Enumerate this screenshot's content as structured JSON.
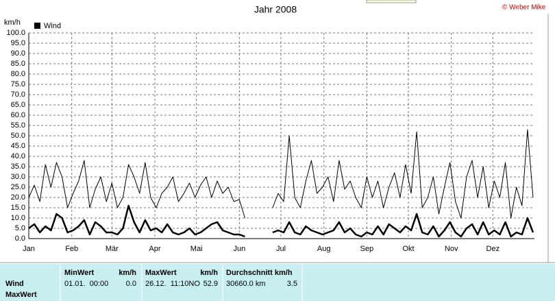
{
  "chart_data": {
    "type": "line",
    "title": "Jahr 2008",
    "y_label": "km/h",
    "legend": "top-left",
    "grid": true,
    "xlim": [
      1,
      366
    ],
    "xticks": [
      {
        "value": 1,
        "label": "Jan"
      },
      {
        "value": 32,
        "label": "Feb"
      },
      {
        "value": 61,
        "label": "Mär"
      },
      {
        "value": 92,
        "label": "Apr"
      },
      {
        "value": 122,
        "label": "Mai"
      },
      {
        "value": 153,
        "label": "Jun"
      },
      {
        "value": 183,
        "label": "Jul"
      },
      {
        "value": 214,
        "label": "Aug"
      },
      {
        "value": 245,
        "label": "Sep"
      },
      {
        "value": 275,
        "label": "Okt"
      },
      {
        "value": 306,
        "label": "Nov"
      },
      {
        "value": 336,
        "label": "Dez"
      }
    ],
    "ylim": [
      0,
      100
    ],
    "yticks": [
      {
        "value": 0,
        "label": "0.0"
      },
      {
        "value": 5,
        "label": "5.0"
      },
      {
        "value": 10,
        "label": "10.0"
      },
      {
        "value": 15,
        "label": "15.0"
      },
      {
        "value": 20,
        "label": "20.0"
      },
      {
        "value": 25,
        "label": "25.0"
      },
      {
        "value": 30,
        "label": "30.0"
      },
      {
        "value": 35,
        "label": "35.0"
      },
      {
        "value": 40,
        "label": "40.0"
      },
      {
        "value": 45,
        "label": "45.0"
      },
      {
        "value": 50,
        "label": "50.0"
      },
      {
        "value": 55,
        "label": "55.0"
      },
      {
        "value": 60,
        "label": "60.0"
      },
      {
        "value": 65,
        "label": "65.0"
      },
      {
        "value": 70,
        "label": "70.0"
      },
      {
        "value": 75,
        "label": "75.0"
      },
      {
        "value": 80,
        "label": "80.0"
      },
      {
        "value": 85,
        "label": "85.0"
      },
      {
        "value": 90,
        "label": "90.0"
      },
      {
        "value": 95,
        "label": "95.0"
      },
      {
        "value": 100,
        "label": "100.0"
      }
    ],
    "x": [
      1,
      5,
      9,
      13,
      17,
      21,
      25,
      29,
      33,
      37,
      41,
      45,
      49,
      53,
      57,
      61,
      65,
      69,
      73,
      77,
      81,
      85,
      89,
      93,
      97,
      101,
      105,
      109,
      113,
      117,
      121,
      125,
      129,
      133,
      137,
      141,
      145,
      149,
      153,
      157,
      161,
      165,
      169,
      173,
      177,
      181,
      185,
      189,
      193,
      197,
      201,
      205,
      209,
      213,
      217,
      221,
      225,
      229,
      233,
      237,
      241,
      245,
      249,
      253,
      257,
      261,
      265,
      269,
      273,
      277,
      281,
      285,
      289,
      293,
      297,
      301,
      305,
      309,
      313,
      317,
      321,
      325,
      329,
      333,
      337,
      341,
      345,
      349,
      353,
      357,
      361,
      365
    ],
    "series": [
      {
        "name": "Wind",
        "color": "#000000",
        "values": [
          5,
          7,
          3,
          6,
          4,
          12,
          10,
          3,
          4,
          6,
          9,
          2,
          8,
          6,
          3,
          3,
          2,
          5,
          16,
          8,
          3,
          9,
          4,
          5,
          3,
          7,
          3,
          2,
          3,
          5,
          2,
          3,
          5,
          7,
          8,
          4,
          3,
          2,
          2,
          1,
          null,
          null,
          null,
          null,
          3,
          4,
          3,
          8,
          3,
          2,
          6,
          4,
          3,
          2,
          3,
          4,
          8,
          3,
          5,
          2,
          1,
          3,
          2,
          6,
          2,
          7,
          5,
          3,
          6,
          4,
          12,
          3,
          2,
          6,
          1,
          4,
          8,
          3,
          1,
          5,
          7,
          2,
          8,
          2,
          4,
          2,
          8,
          1,
          3,
          2,
          10,
          3
        ]
      },
      {
        "color": "#000000",
        "values": [
          20,
          26,
          18,
          36,
          25,
          37,
          30,
          15,
          22,
          28,
          38,
          15,
          24,
          30,
          18,
          27,
          15,
          20,
          36,
          30,
          22,
          37,
          20,
          15,
          22,
          25,
          30,
          18,
          22,
          27,
          20,
          26,
          30,
          20,
          28,
          22,
          25,
          18,
          19,
          10,
          null,
          null,
          null,
          null,
          15,
          22,
          18,
          50,
          20,
          15,
          28,
          38,
          22,
          25,
          30,
          18,
          38,
          24,
          28,
          20,
          15,
          30,
          20,
          28,
          15,
          25,
          32,
          20,
          36,
          22,
          52,
          15,
          20,
          30,
          12,
          25,
          37,
          18,
          10,
          30,
          38,
          20,
          35,
          15,
          28,
          20,
          37,
          10,
          25,
          16,
          53,
          20
        ]
      }
    ]
  },
  "copyright": "© Weber Mike",
  "stats_table": {
    "row_labels": [
      "Wind",
      "MaxWert"
    ],
    "groups": [
      {
        "title": "MinWert",
        "unit": "km/h",
        "text": "01.01.  00:00",
        "value": "0.0"
      },
      {
        "title": "MaxWert",
        "unit": "km/h",
        "text": "26.12.  11:10NO",
        "value": "52.9"
      },
      {
        "title": "Durchschnitt km/h",
        "text": "30660.0 km",
        "value": "3.5"
      }
    ]
  }
}
